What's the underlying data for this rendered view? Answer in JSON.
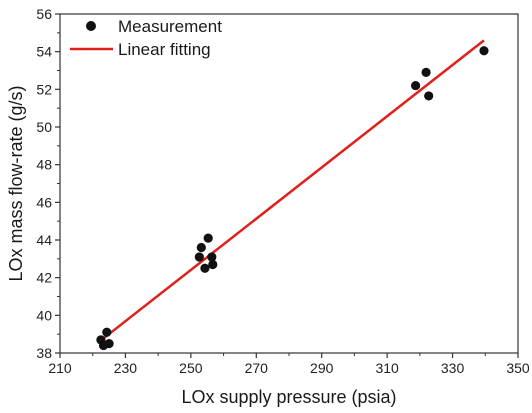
{
  "chart_data": {
    "type": "scatter",
    "xlabel": "LOx supply pressure (psia)",
    "ylabel": "LOx mass flow-rate (g/s)",
    "xlim": [
      210,
      350
    ],
    "ylim": [
      38,
      56
    ],
    "xticks": [
      210,
      230,
      250,
      270,
      290,
      310,
      330,
      350
    ],
    "yticks": [
      38,
      40,
      42,
      44,
      46,
      48,
      50,
      52,
      54,
      56
    ],
    "grid": false,
    "legend_position": "top-left",
    "series": [
      {
        "name": "Measurement",
        "kind": "scatter",
        "color": "#111111",
        "points": [
          [
            222.5,
            38.7
          ],
          [
            223.3,
            38.4
          ],
          [
            224.3,
            39.1
          ],
          [
            225.0,
            38.5
          ],
          [
            252.6,
            43.1
          ],
          [
            253.2,
            43.6
          ],
          [
            254.3,
            42.5
          ],
          [
            255.3,
            44.1
          ],
          [
            256.4,
            43.1
          ],
          [
            256.7,
            42.7
          ],
          [
            318.7,
            52.2
          ],
          [
            321.9,
            52.9
          ],
          [
            322.7,
            51.65
          ],
          [
            339.6,
            54.05
          ]
        ]
      },
      {
        "name": "Linear fitting",
        "kind": "line",
        "color": "#e0201b",
        "points": [
          [
            222.0,
            38.6
          ],
          [
            339.6,
            54.6
          ]
        ]
      }
    ]
  }
}
